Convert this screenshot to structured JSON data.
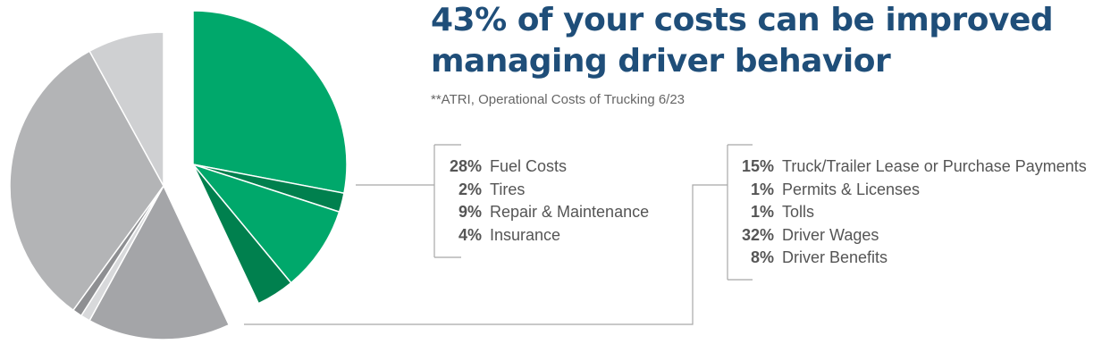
{
  "headline": {
    "line1": "43% of your costs can be improved",
    "line2": "managing driver behavior"
  },
  "source": "**ATRI, Operational Costs of Trucking 6/23",
  "colors": {
    "headline": "#1f4e79",
    "green_bright": "#00a86b",
    "green_dark": "#00804e",
    "grey_light": "#cfd0d2",
    "grey_mid": "#b3b4b6",
    "grey_dark": "#a4a5a8",
    "grey_darker": "#8e8f92",
    "leader_line": "#a8a8a8"
  },
  "chart_data": {
    "type": "pie",
    "exploded_group": [
      "fuel",
      "tires",
      "repair",
      "insurance"
    ],
    "slices": [
      {
        "key": "fuel",
        "label": "Fuel Costs",
        "value": 28,
        "display": "28%",
        "color": "#00a86b"
      },
      {
        "key": "tires",
        "label": "Tires",
        "value": 2,
        "display": "2%",
        "color": "#00804e"
      },
      {
        "key": "repair",
        "label": "Repair & Maintenance",
        "value": 9,
        "display": "9%",
        "color": "#00a86b"
      },
      {
        "key": "insurance",
        "label": "Insurance",
        "value": 4,
        "display": "4%",
        "color": "#00804e"
      },
      {
        "key": "lease",
        "label": "Truck/Trailer Lease or Purchase Payments",
        "value": 15,
        "display": "15%",
        "color": "#a4a5a8"
      },
      {
        "key": "permits",
        "label": "Permits & Licenses",
        "value": 1,
        "display": "1%",
        "color": "#d8d9db"
      },
      {
        "key": "tolls",
        "label": "Tolls",
        "value": 1,
        "display": "1%",
        "color": "#8e8f92"
      },
      {
        "key": "wages",
        "label": "Driver Wages",
        "value": 32,
        "display": "32%",
        "color": "#b3b4b6"
      },
      {
        "key": "benefits",
        "label": "Driver Benefits",
        "value": 8,
        "display": "8%",
        "color": "#cfd0d2"
      }
    ]
  },
  "legend": {
    "group1": [
      {
        "pct": "28%",
        "label": "Fuel Costs"
      },
      {
        "pct": "2%",
        "label": "Tires"
      },
      {
        "pct": "9%",
        "label": "Repair & Maintenance"
      },
      {
        "pct": "4%",
        "label": "Insurance"
      }
    ],
    "group2": [
      {
        "pct": "15%",
        "label": "Truck/Trailer Lease or Purchase Payments"
      },
      {
        "pct": "1%",
        "label": "Permits & Licenses"
      },
      {
        "pct": "1%",
        "label": "Tolls"
      },
      {
        "pct": "32%",
        "label": "Driver Wages"
      },
      {
        "pct": "8%",
        "label": "Driver Benefits"
      }
    ]
  }
}
